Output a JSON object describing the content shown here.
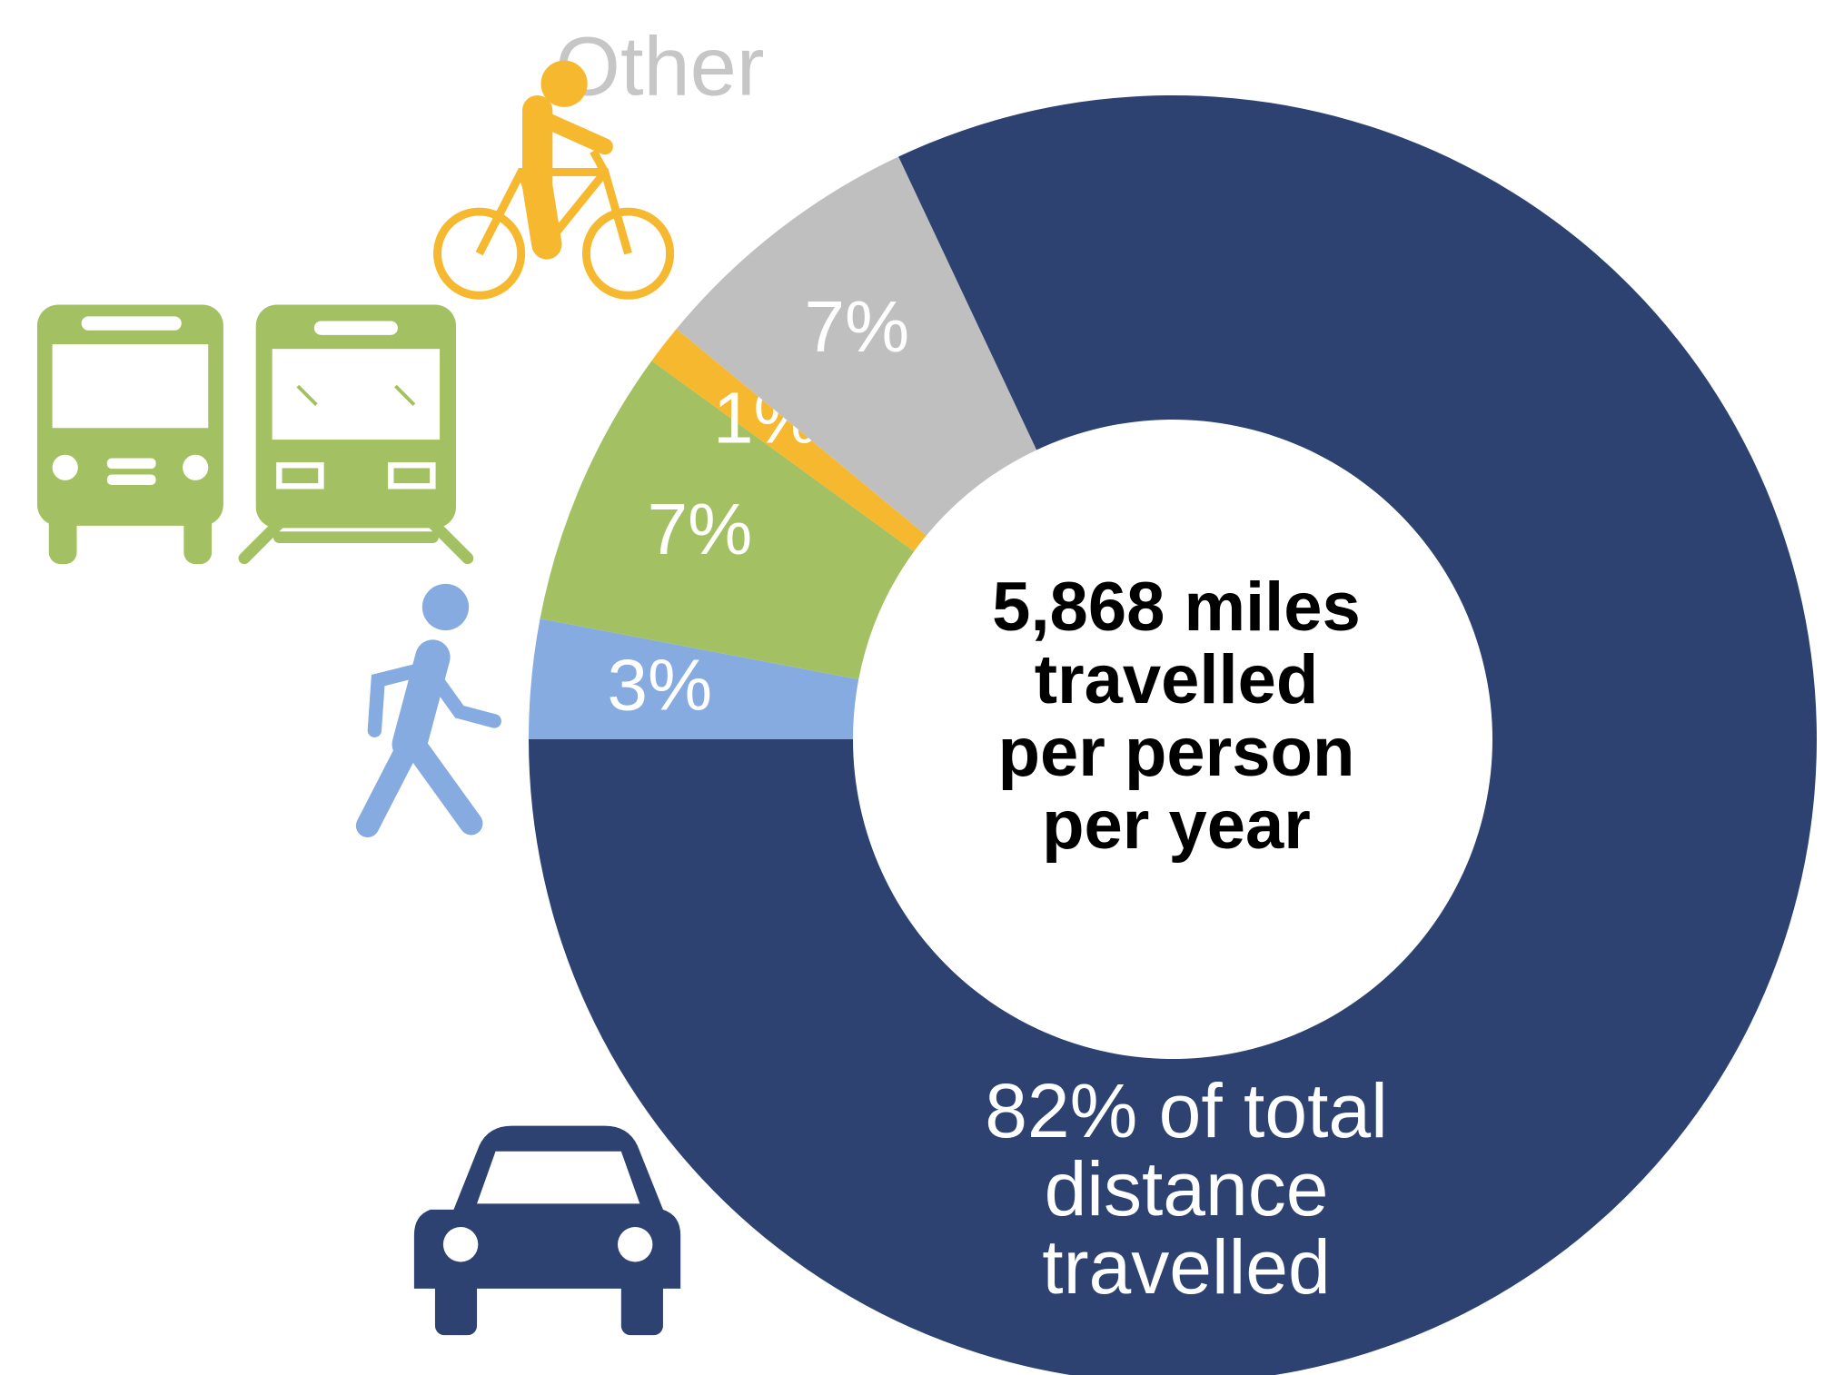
{
  "chart_data": {
    "type": "donut",
    "categories": [
      null,
      null,
      null,
      "Other",
      null
    ],
    "values": [
      3,
      7,
      1,
      7,
      82
    ],
    "value_labels": [
      "3%",
      "7%",
      "1%",
      "7%",
      "82% of total distance travelled"
    ],
    "colors": [
      "#86abe0",
      "#a3c163",
      "#f6b82e",
      "#bfbfbf",
      "#2d4271"
    ],
    "center_text": [
      "5,868 miles",
      "travelled",
      "per person",
      "per year"
    ]
  }
}
